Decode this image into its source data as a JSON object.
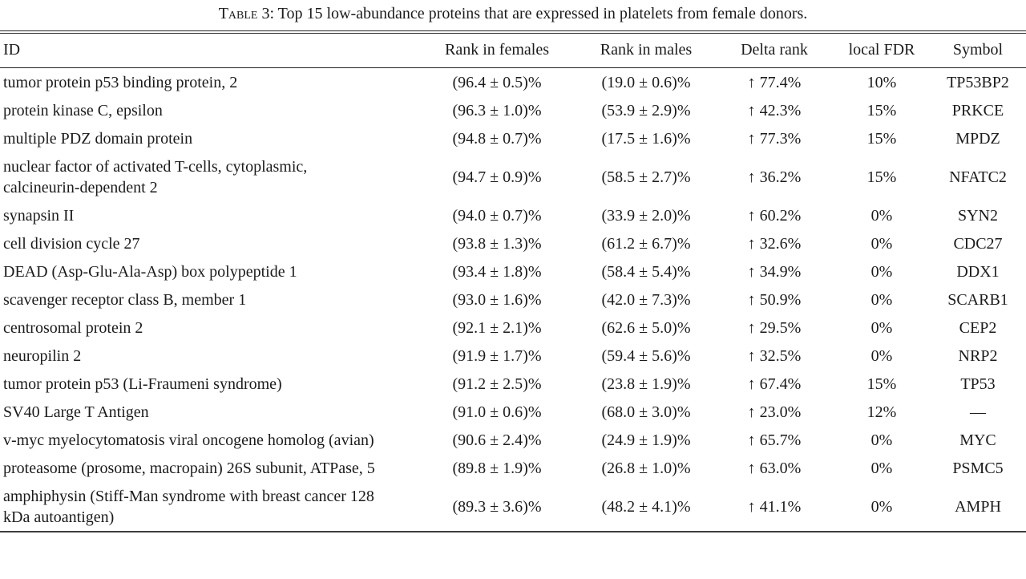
{
  "title": {
    "label": "Table 3:",
    "text": " Top 15 low-abundance proteins that are expressed in platelets from female donors."
  },
  "table": {
    "columns": [
      "ID",
      "Rank in females",
      "Rank in males",
      "Delta rank",
      "local FDR",
      "Symbol"
    ],
    "rows": [
      [
        "tumor protein p53 binding protein, 2",
        "(96.4 ± 0.5)%",
        "(19.0 ± 0.6)%",
        "↑ 77.4%",
        "10%",
        "TP53BP2"
      ],
      [
        "protein kinase C, epsilon",
        "(96.3 ± 1.0)%",
        "(53.9 ± 2.9)%",
        "↑ 42.3%",
        "15%",
        "PRKCE"
      ],
      [
        "multiple PDZ domain protein",
        "(94.8 ± 0.7)%",
        "(17.5 ± 1.6)%",
        "↑ 77.3%",
        "15%",
        "MPDZ"
      ],
      [
        "nuclear factor of activated T-cells, cytoplasmic, calcineurin-dependent 2",
        "(94.7 ± 0.9)%",
        "(58.5 ± 2.7)%",
        "↑ 36.2%",
        "15%",
        "NFATC2"
      ],
      [
        "synapsin II",
        "(94.0 ± 0.7)%",
        "(33.9 ± 2.0)%",
        "↑ 60.2%",
        "0%",
        "SYN2"
      ],
      [
        "cell division cycle 27",
        "(93.8 ± 1.3)%",
        "(61.2 ± 6.7)%",
        "↑ 32.6%",
        "0%",
        "CDC27"
      ],
      [
        "DEAD (Asp-Glu-Ala-Asp) box polypeptide 1",
        "(93.4 ± 1.8)%",
        "(58.4 ± 5.4)%",
        "↑ 34.9%",
        "0%",
        "DDX1"
      ],
      [
        "scavenger receptor class B, member 1",
        "(93.0 ± 1.6)%",
        "(42.0 ± 7.3)%",
        "↑ 50.9%",
        "0%",
        "SCARB1"
      ],
      [
        "centrosomal protein 2",
        "(92.1 ± 2.1)%",
        "(62.6 ± 5.0)%",
        "↑ 29.5%",
        "0%",
        "CEP2"
      ],
      [
        "neuropilin 2",
        "(91.9 ± 1.7)%",
        "(59.4 ± 5.6)%",
        "↑ 32.5%",
        "0%",
        "NRP2"
      ],
      [
        "tumor protein p53 (Li-Fraumeni syndrome)",
        "(91.2 ± 2.5)%",
        "(23.8 ± 1.9)%",
        "↑ 67.4%",
        "15%",
        "TP53"
      ],
      [
        "SV40 Large T Antigen",
        "(91.0 ± 0.6)%",
        "(68.0 ± 3.0)%",
        "↑ 23.0%",
        "12%",
        "—"
      ],
      [
        "v-myc myelocytomatosis viral oncogene homolog (avian)",
        "(90.6 ± 2.4)%",
        "(24.9 ± 1.9)%",
        "↑ 65.7%",
        "0%",
        "MYC"
      ],
      [
        "proteasome (prosome, macropain) 26S subunit, ATPase, 5",
        "(89.8 ± 1.9)%",
        "(26.8 ± 1.0)%",
        "↑ 63.0%",
        "0%",
        "PSMC5"
      ],
      [
        "amphiphysin (Stiff-Man syndrome with breast cancer 128 kDa autoantigen)",
        "(89.3 ± 3.6)%",
        "(48.2 ± 4.1)%",
        "↑ 41.1%",
        "0%",
        "AMPH"
      ]
    ],
    "cell_names": [
      "cell-id",
      "cell-rank-in-females",
      "cell-rank-in-males",
      "cell-delta-rank",
      "cell-local-fdr",
      "cell-symbol"
    ]
  }
}
